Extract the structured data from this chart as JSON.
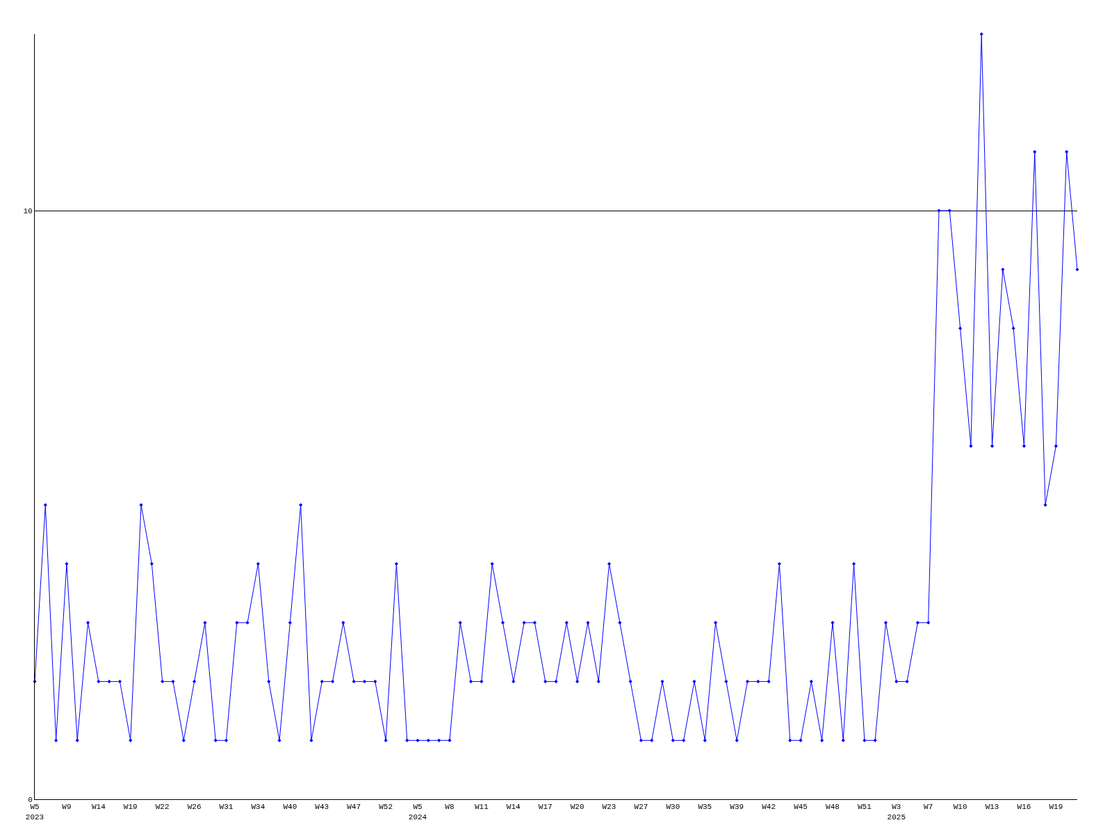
{
  "chart_data": {
    "type": "line",
    "categories": [
      "W5\n2023",
      null,
      null,
      "W9",
      null,
      null,
      "W14",
      null,
      null,
      "W19",
      null,
      null,
      "W22",
      null,
      null,
      "W26",
      null,
      null,
      "W31",
      null,
      null,
      "W34",
      null,
      null,
      "W40",
      null,
      null,
      "W43",
      null,
      null,
      "W47",
      null,
      null,
      "W52",
      null,
      null,
      "W5\n2024",
      null,
      null,
      "W8",
      null,
      null,
      "W11",
      null,
      null,
      "W14",
      null,
      null,
      "W17",
      null,
      null,
      "W20",
      null,
      null,
      "W23",
      null,
      null,
      "W27",
      null,
      null,
      "W30",
      null,
      null,
      "W35",
      null,
      null,
      "W39",
      null,
      null,
      "W42",
      null,
      null,
      "W45",
      null,
      null,
      "W48",
      null,
      null,
      "W51",
      null,
      null,
      "W3\n2025",
      null,
      null,
      "W7",
      null,
      null,
      "W10",
      null,
      null,
      "W13",
      null,
      null,
      "W16",
      null,
      null,
      "W19",
      null,
      null
    ],
    "series": [
      {
        "color": "#0000ff",
        "values": [
          2,
          5,
          1,
          4,
          1,
          3,
          2,
          2,
          2,
          1,
          5,
          4,
          2,
          2,
          1,
          2,
          3,
          1,
          1,
          3,
          3,
          4,
          2,
          1,
          3,
          5,
          1,
          2,
          2,
          3,
          2,
          2,
          2,
          1,
          4,
          1,
          1,
          1,
          1,
          1,
          3,
          2,
          2,
          4,
          3,
          2,
          3,
          3,
          2,
          2,
          3,
          2,
          3,
          2,
          4,
          3,
          2,
          1,
          1,
          2,
          1,
          1,
          2,
          1,
          3,
          2,
          1,
          2,
          2,
          2,
          4,
          1,
          1,
          2,
          1,
          3,
          1,
          4,
          1,
          1,
          3,
          2,
          2,
          3,
          3,
          10,
          10,
          8,
          6,
          13,
          6,
          9,
          8,
          6,
          11,
          5,
          6,
          11,
          9
        ]
      }
    ],
    "ylim": [
      0,
      13
    ],
    "yticks": [
      0,
      10
    ],
    "grid": "y",
    "legend": false,
    "marker": "diamond",
    "line_style": "solid"
  }
}
